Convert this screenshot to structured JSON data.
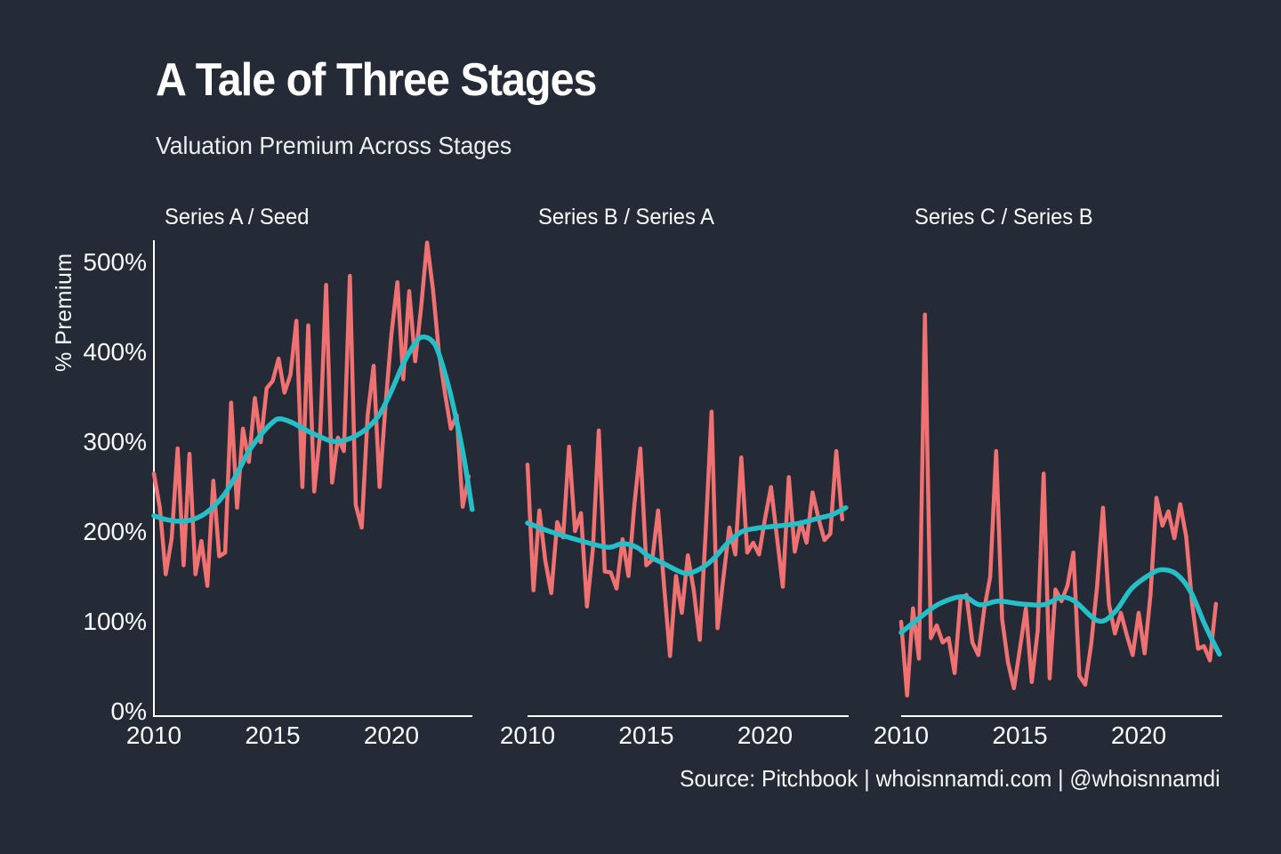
{
  "page": {
    "background": "#252B36"
  },
  "header": {
    "title": "A Tale of Three Stages",
    "subtitle": "Valuation Premium Across Stages"
  },
  "footer": {
    "source": "Source: Pitchbook | whoisnnamdi.com | @whoisnnamdi"
  },
  "chart_data": {
    "type": "line",
    "title": "A Tale of Three Stages",
    "subtitle": "Valuation Premium Across Stages",
    "ylabel": "% Premium",
    "xlabel": "",
    "ylim": [
      0,
      530
    ],
    "x_range": [
      2010,
      2023.4
    ],
    "grid": false,
    "legend": "none",
    "y_tick_labels": [
      "0%",
      "100%",
      "200%",
      "300%",
      "400%",
      "500%"
    ],
    "y_tick_values": [
      0,
      100,
      200,
      300,
      400,
      500
    ],
    "x_tick_labels": [
      "2010",
      "2015",
      "2020"
    ],
    "x_tick_values": [
      2010,
      2015,
      2020
    ],
    "colors": {
      "raw_line": "#F07171",
      "trend_line": "#26BFC7",
      "axis": "#FFFFFF",
      "text": "#FAFBFC",
      "background": "#252B36"
    },
    "series_frequency": "quarterly",
    "panels": [
      {
        "title": "Series A / Seed",
        "raw": {
          "x_start": 2010,
          "x_step": 0.25,
          "values": [
            265,
            227,
            153,
            193,
            293,
            163,
            287,
            153,
            190,
            140,
            257,
            173,
            177,
            344,
            227,
            315,
            278,
            349,
            300,
            360,
            368,
            393,
            355,
            375,
            435,
            250,
            430,
            245,
            310,
            475,
            255,
            305,
            290,
            485,
            230,
            205,
            330,
            385,
            250,
            340,
            420,
            478,
            370,
            468,
            390,
            450,
            522,
            470,
            400,
            355,
            315,
            330,
            228,
            262
          ]
        },
        "trend": {
          "x": [
            2010,
            2010.5,
            2011,
            2011.5,
            2012,
            2012.5,
            2013,
            2013.5,
            2014,
            2014.5,
            2015,
            2015.3,
            2015.8,
            2016.5,
            2017,
            2017.5,
            2018,
            2018.5,
            2019,
            2019.5,
            2020,
            2020.5,
            2021,
            2021.3,
            2021.7,
            2022,
            2022.5,
            2023,
            2023.4
          ],
          "values": [
            218,
            214,
            212,
            213,
            218,
            228,
            243,
            265,
            290,
            308,
            322,
            326,
            322,
            312,
            306,
            301,
            302,
            307,
            316,
            331,
            357,
            387,
            410,
            417,
            413,
            398,
            352,
            290,
            225
          ]
        }
      },
      {
        "title": "Series B / Series A",
        "raw": {
          "x_start": 2010,
          "x_step": 0.25,
          "values": [
            275,
            135,
            224,
            168,
            132,
            211,
            194,
            295,
            201,
            221,
            117,
            180,
            313,
            156,
            155,
            137,
            192,
            151,
            230,
            293,
            163,
            169,
            224,
            140,
            62,
            151,
            110,
            174,
            135,
            80,
            200,
            334,
            93,
            150,
            205,
            175,
            283,
            177,
            188,
            175,
            215,
            250,
            195,
            139,
            261,
            178,
            211,
            188,
            244,
            215,
            191,
            198,
            290,
            214
          ]
        },
        "trend": {
          "x": [
            2010,
            2011,
            2012.4,
            2013.4,
            2014,
            2014.6,
            2015.1,
            2015.8,
            2016.4,
            2016.8,
            2017.4,
            2017.9,
            2018.4,
            2019,
            2019.6,
            2020.3,
            2021,
            2021.5,
            2022.2,
            2022.8,
            2023.4
          ],
          "values": [
            210,
            200,
            189,
            183,
            187,
            183,
            173,
            164,
            156,
            154,
            161,
            172,
            187,
            200,
            204,
            206,
            208,
            210,
            215,
            219,
            227
          ]
        }
      },
      {
        "title": "Series C / Series B",
        "raw": {
          "x_start": 2010,
          "x_step": 0.25,
          "values": [
            100,
            18,
            115,
            59,
            442,
            82,
            96,
            77,
            82,
            43,
            126,
            130,
            77,
            63,
            115,
            150,
            290,
            103,
            55,
            26,
            70,
            115,
            33,
            90,
            265,
            37,
            136,
            123,
            140,
            177,
            40,
            30,
            75,
            140,
            227,
            120,
            87,
            110,
            85,
            63,
            110,
            65,
            130,
            238,
            207,
            223,
            193,
            231,
            195,
            120,
            70,
            73,
            57,
            120
          ]
        },
        "trend": {
          "x": [
            2010,
            2010.8,
            2011.6,
            2012.6,
            2013.3,
            2014.1,
            2015,
            2016,
            2016.7,
            2017.3,
            2018.3,
            2019,
            2019.7,
            2020.5,
            2021,
            2021.6,
            2022.2,
            2022.8,
            2023.4
          ],
          "values": [
            88,
            105,
            120,
            128,
            119,
            123,
            120,
            119,
            127,
            123,
            101,
            111,
            137,
            153,
            158,
            153,
            133,
            96,
            64
          ]
        }
      }
    ]
  }
}
